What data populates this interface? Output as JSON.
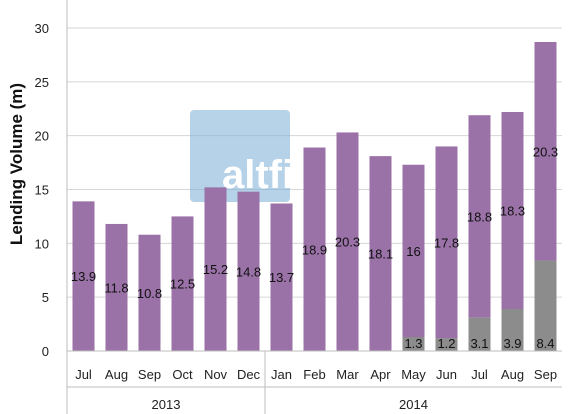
{
  "chart_data": {
    "type": "bar",
    "stacked": true,
    "ylabel": "Lending Volume (m)",
    "xlabel": "",
    "ylim": [
      0,
      30
    ],
    "yticks": [
      0,
      5,
      10,
      15,
      20,
      25,
      30
    ],
    "grid": true,
    "legend": "none",
    "categories": [
      "Jul",
      "Aug",
      "Sep",
      "Oct",
      "Nov",
      "Dec",
      "Jan",
      "Feb",
      "Mar",
      "Apr",
      "May",
      "Jun",
      "Jul",
      "Aug",
      "Sep"
    ],
    "groups": [
      {
        "label": "2013",
        "start": 0,
        "end": 5
      },
      {
        "label": "2014",
        "start": 6,
        "end": 14
      }
    ],
    "series": [
      {
        "color": "#8c8c8c",
        "values": [
          0,
          0,
          0,
          0,
          0,
          0,
          0,
          0,
          0,
          0,
          1.3,
          1.2,
          3.1,
          3.9,
          8.4
        ],
        "labels": [
          null,
          null,
          null,
          null,
          null,
          null,
          null,
          null,
          null,
          null,
          "1.3",
          "1.2",
          "3.1",
          "3.9",
          "8.4"
        ]
      },
      {
        "color": "#9b72a8",
        "values": [
          13.9,
          11.8,
          10.8,
          12.5,
          15.2,
          14.8,
          13.7,
          18.9,
          20.3,
          18.1,
          16,
          17.8,
          18.8,
          18.3,
          20.3
        ],
        "labels": [
          "13.9",
          "11.8",
          "10.8",
          "12.5",
          "15.2",
          "14.8",
          "13.7",
          "18.9",
          "20.3",
          "18.1",
          "16",
          "17.8",
          "18.8",
          "18.3",
          "20.3"
        ]
      }
    ]
  },
  "watermark": {
    "text": "altfi data",
    "color": "#7aaed6"
  }
}
